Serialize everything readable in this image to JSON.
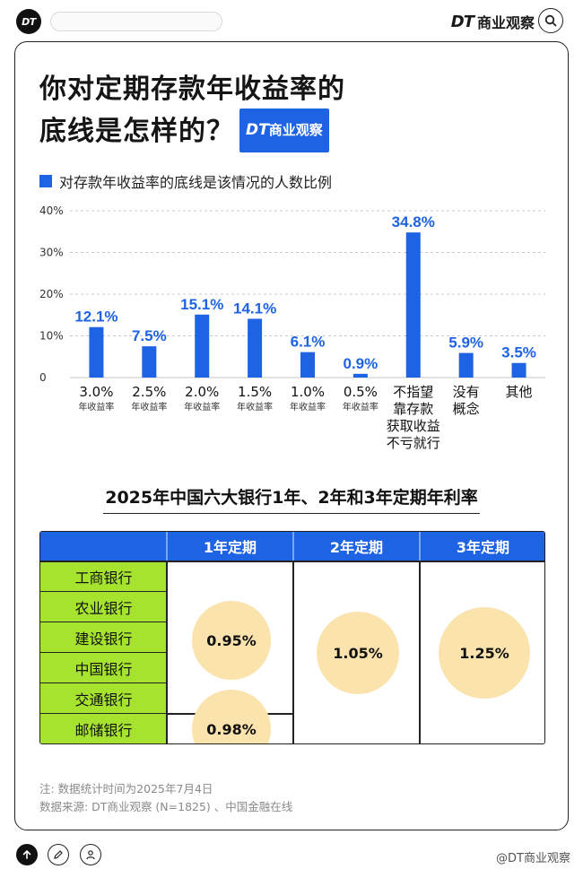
{
  "topbar": {
    "logo_text": "DT",
    "brand_dt": "DT",
    "brand_name": "商业观察"
  },
  "title": {
    "line1": "你对定期存款年收益率的",
    "line2": "底线是怎样的？",
    "badge_dt": "DT",
    "badge_name": "商业观察"
  },
  "legend": {
    "label": "对存款年收益率的底线是该情况的人数比例",
    "color": "#1e63e3"
  },
  "chart_data": {
    "type": "bar",
    "title": "你对定期存款年收益率的底线是怎样的？",
    "series_name": "对存款年收益率的底线是该情况的人数比例",
    "categories": [
      "3.0%年收益率",
      "2.5%年收益率",
      "2.0%年收益率",
      "1.5%年收益率",
      "1.0%年收益率",
      "0.5%年收益率",
      "不指望靠存款获取收益不亏就行",
      "没有概念",
      "其他"
    ],
    "category_lines": [
      [
        "3.0%"
      ],
      [
        "2.5%"
      ],
      [
        "2.0%"
      ],
      [
        "1.5%"
      ],
      [
        "1.0%"
      ],
      [
        "0.5%"
      ],
      [
        "不指望",
        "靠存款",
        "获取收益",
        "不亏就行"
      ],
      [
        "没有",
        "概念"
      ],
      [
        "其他"
      ]
    ],
    "category_sub": [
      "年收益率",
      "年收益率",
      "年收益率",
      "年收益率",
      "年收益率",
      "年收益率",
      "",
      "",
      ""
    ],
    "values": [
      12.1,
      7.5,
      15.1,
      14.1,
      6.1,
      0.9,
      34.8,
      5.9,
      3.5
    ],
    "value_labels": [
      "12.1%",
      "7.5%",
      "15.1%",
      "14.1%",
      "6.1%",
      "0.9%",
      "34.8%",
      "5.9%",
      "3.5%"
    ],
    "yticks": [
      0,
      10,
      20,
      30,
      40
    ],
    "ytick_labels": [
      "0",
      "10%",
      "20%",
      "30%",
      "40%"
    ],
    "ylim": [
      0,
      40
    ],
    "grid": true,
    "bar_color": "#1e63e3"
  },
  "table": {
    "title": "2025年中国六大银行1年、2年和3年定期年利率",
    "headers": [
      "1年定期",
      "2年定期",
      "3年定期"
    ],
    "banks": [
      "工商银行",
      "农业银行",
      "建设银行",
      "中国银行",
      "交通银行",
      "邮储银行"
    ],
    "rate_1y_main": "0.95%",
    "rate_1y_postal": "0.98%",
    "rate_2y": "1.05%",
    "rate_3y": "1.25%",
    "header_color": "#1e63e3",
    "bank_color": "#a6e32e",
    "circle_color": "#fbe3ad"
  },
  "notes": {
    "note": "注: 数据统计时间为2025年7月4日",
    "source": "数据来源: DT商业观察 (N=1825) 、中国金融在线"
  },
  "footer": {
    "brand": "@DT商业观察"
  }
}
